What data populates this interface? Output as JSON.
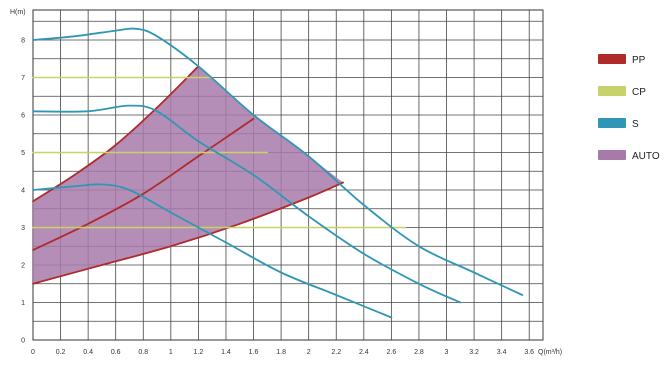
{
  "chart_data": {
    "type": "line",
    "title": "",
    "xlabel": "Q(m³/h)",
    "ylabel": "H(m)",
    "xlim": [
      0,
      3.7
    ],
    "ylim": [
      0,
      8.8
    ],
    "grid": true,
    "legend_position": "right",
    "x_ticks": [
      "0",
      "0.2",
      "0.4",
      "0.6",
      "0.8",
      "1",
      "1.2",
      "1.4",
      "1.6",
      "1.8",
      "2",
      "2.2",
      "2.4",
      "2.6",
      "2.8",
      "3",
      "3.2",
      "3.4",
      "3.6"
    ],
    "y_ticks": [
      "0",
      "1",
      "2",
      "3",
      "4",
      "5",
      "6",
      "7",
      "8"
    ],
    "legend": [
      {
        "name": "PP",
        "color": "#b02a2a",
        "kind": "line"
      },
      {
        "name": "CP",
        "color": "#c8d26a",
        "kind": "line"
      },
      {
        "name": "S",
        "color": "#2f97b5",
        "kind": "line"
      },
      {
        "name": "AUTO",
        "color": "#a77aaa",
        "kind": "fill"
      }
    ],
    "series": [
      {
        "name": "PP",
        "style": "line",
        "x": [
          0,
          0.3,
          0.6,
          0.9,
          1.2
        ],
        "y": [
          3.7,
          4.4,
          5.2,
          6.2,
          7.3
        ]
      },
      {
        "name": "PP",
        "style": "line",
        "x": [
          0,
          0.4,
          0.8,
          1.2,
          1.6
        ],
        "y": [
          2.4,
          3.1,
          3.9,
          4.9,
          5.9
        ]
      },
      {
        "name": "PP",
        "style": "line",
        "x": [
          0,
          0.5,
          1.0,
          1.5,
          2.0,
          2.25
        ],
        "y": [
          1.5,
          2.0,
          2.5,
          3.1,
          3.8,
          4.2
        ]
      },
      {
        "name": "CP",
        "style": "line",
        "x": [
          0,
          1.3
        ],
        "y": [
          7.0,
          7.0
        ]
      },
      {
        "name": "CP",
        "style": "line",
        "x": [
          0,
          1.7
        ],
        "y": [
          5.0,
          5.0
        ]
      },
      {
        "name": "CP",
        "style": "line",
        "x": [
          0,
          2.7
        ],
        "y": [
          3.0,
          3.0
        ]
      },
      {
        "name": "S",
        "style": "line",
        "x": [
          0,
          0.3,
          0.6,
          0.75,
          0.9,
          1.2,
          1.6,
          2.0,
          2.4,
          2.8,
          3.2,
          3.55
        ],
        "y": [
          8.0,
          8.1,
          8.25,
          8.3,
          8.1,
          7.3,
          6.0,
          4.9,
          3.6,
          2.5,
          1.8,
          1.2
        ]
      },
      {
        "name": "S",
        "style": "line",
        "x": [
          0,
          0.4,
          0.7,
          0.9,
          1.2,
          1.6,
          2.0,
          2.4,
          2.8,
          3.1
        ],
        "y": [
          6.1,
          6.1,
          6.25,
          6.1,
          5.3,
          4.4,
          3.3,
          2.3,
          1.5,
          1.0
        ]
      },
      {
        "name": "S",
        "style": "line",
        "x": [
          0,
          0.3,
          0.5,
          0.7,
          1.0,
          1.4,
          1.8,
          2.2,
          2.6
        ],
        "y": [
          4.0,
          4.1,
          4.15,
          4.0,
          3.4,
          2.6,
          1.8,
          1.2,
          0.6
        ]
      }
    ],
    "areas": [
      {
        "name": "AUTO",
        "upper_x": [
          0,
          0.3,
          0.6,
          0.9,
          1.2,
          1.6,
          2.0,
          2.25
        ],
        "upper_y": [
          3.7,
          4.4,
          5.2,
          6.2,
          7.3,
          6.0,
          4.9,
          4.2
        ],
        "lower_x": [
          0,
          0.5,
          1.0,
          1.5,
          2.0,
          2.25
        ],
        "lower_y": [
          1.5,
          2.0,
          2.5,
          3.1,
          3.8,
          4.2
        ]
      }
    ]
  }
}
